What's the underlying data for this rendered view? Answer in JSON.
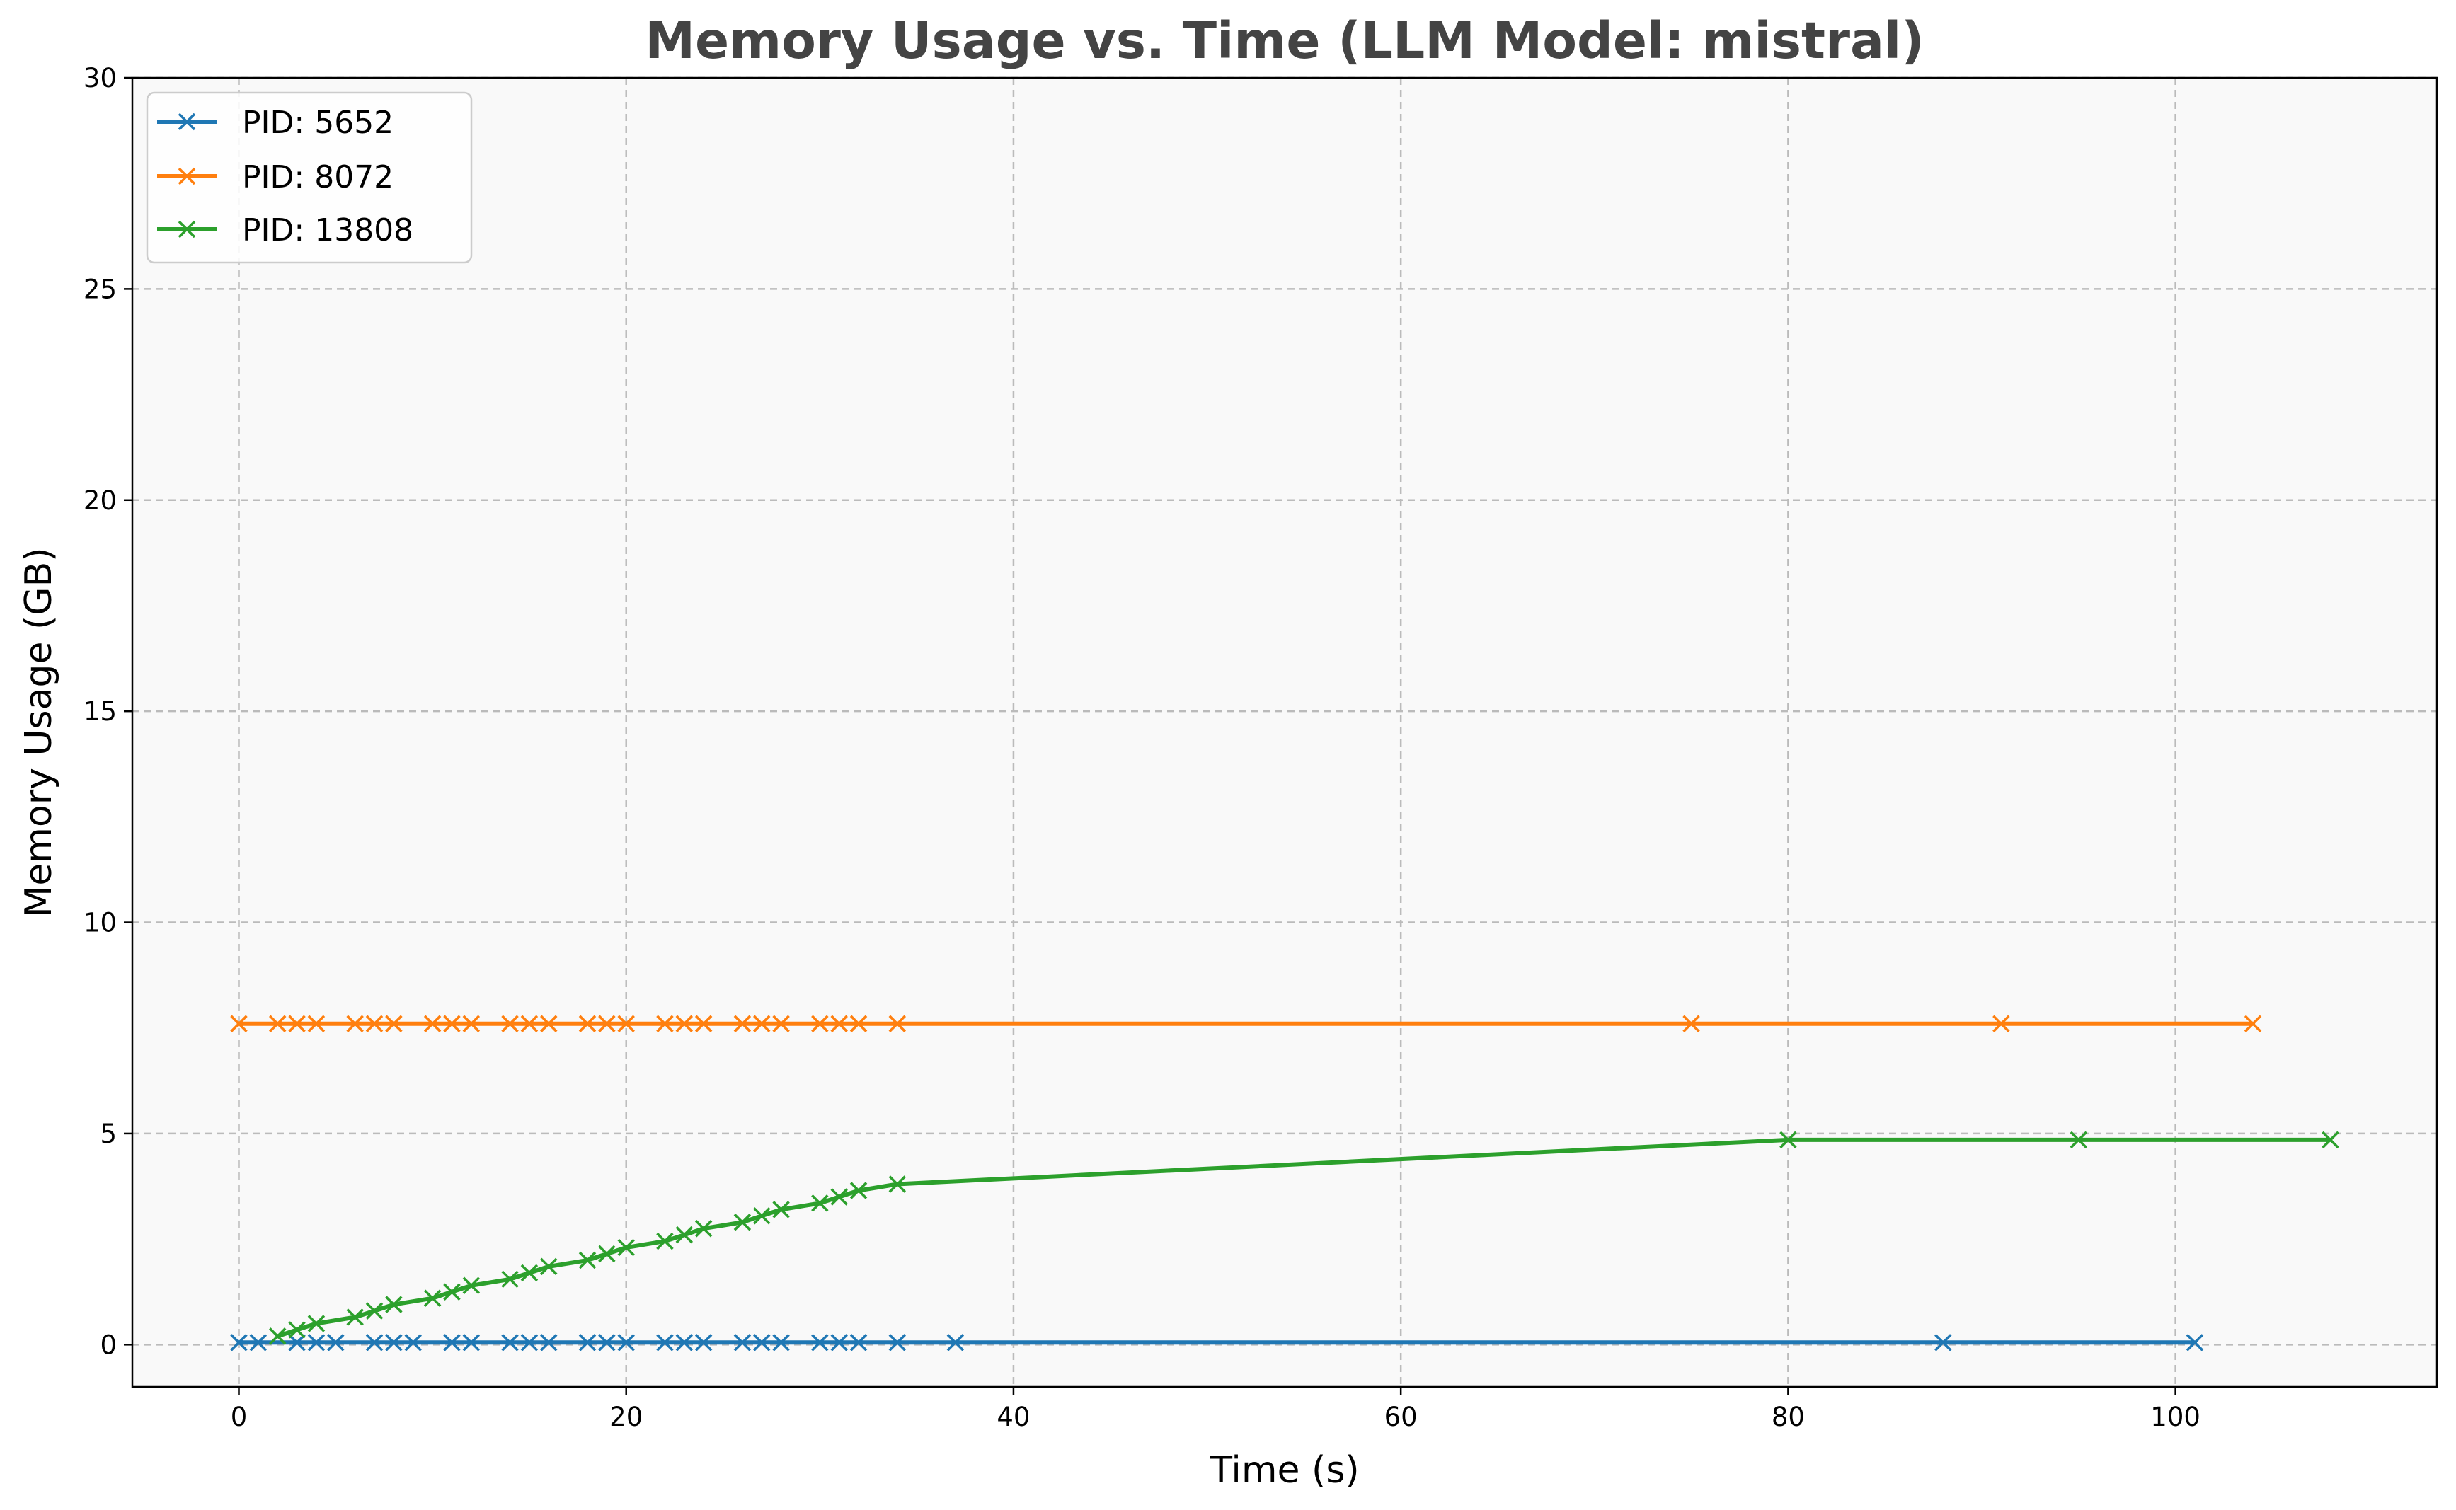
{
  "chart_data": {
    "type": "line",
    "title": "Memory Usage vs. Time (LLM Model: mistral)",
    "xlabel": "Time (s)",
    "ylabel": "Memory Usage (GB)",
    "xlim": [
      -5.5,
      113.5
    ],
    "ylim": [
      -1,
      30
    ],
    "xticks": [
      0,
      20,
      40,
      60,
      80,
      100
    ],
    "yticks": [
      0,
      5,
      10,
      15,
      20,
      25,
      30
    ],
    "grid": true,
    "grid_style": "dashed",
    "background": "#f9f9f9",
    "legend_position": "upper-left",
    "marker": "x",
    "series": [
      {
        "name": "PID: 5652",
        "color": "#1f77b4",
        "x": [
          0,
          1,
          3,
          4,
          5,
          7,
          8,
          9,
          11,
          12,
          14,
          15,
          16,
          18,
          19,
          20,
          22,
          23,
          24,
          26,
          27,
          28,
          30,
          31,
          32,
          34,
          37,
          88,
          101
        ],
        "y": [
          0.05,
          0.05,
          0.05,
          0.05,
          0.05,
          0.05,
          0.05,
          0.05,
          0.05,
          0.05,
          0.05,
          0.05,
          0.05,
          0.05,
          0.05,
          0.05,
          0.05,
          0.05,
          0.05,
          0.05,
          0.05,
          0.05,
          0.05,
          0.05,
          0.05,
          0.05,
          0.05,
          0.05,
          0.05
        ]
      },
      {
        "name": "PID: 8072",
        "color": "#ff7f0e",
        "x": [
          0,
          2,
          3,
          4,
          6,
          7,
          8,
          10,
          11,
          12,
          14,
          15,
          16,
          18,
          19,
          20,
          22,
          23,
          24,
          26,
          27,
          28,
          30,
          31,
          32,
          34,
          75,
          91,
          104
        ],
        "y": [
          7.6,
          7.6,
          7.6,
          7.6,
          7.6,
          7.6,
          7.6,
          7.6,
          7.6,
          7.6,
          7.6,
          7.6,
          7.6,
          7.6,
          7.6,
          7.6,
          7.6,
          7.6,
          7.6,
          7.6,
          7.6,
          7.6,
          7.6,
          7.6,
          7.6,
          7.6,
          7.6,
          7.6,
          7.6
        ]
      },
      {
        "name": "PID: 13808",
        "color": "#2ca02c",
        "x": [
          2,
          3,
          4,
          6,
          7,
          8,
          10,
          11,
          12,
          14,
          15,
          16,
          18,
          19,
          20,
          22,
          23,
          24,
          26,
          27,
          28,
          30,
          31,
          32,
          34,
          80,
          95,
          108
        ],
        "y": [
          0.2,
          0.35,
          0.5,
          0.65,
          0.8,
          0.95,
          1.1,
          1.25,
          1.4,
          1.55,
          1.7,
          1.85,
          2.0,
          2.15,
          2.3,
          2.45,
          2.6,
          2.75,
          2.9,
          3.05,
          3.2,
          3.35,
          3.5,
          3.65,
          3.8,
          4.85,
          4.85,
          4.85
        ]
      }
    ]
  }
}
